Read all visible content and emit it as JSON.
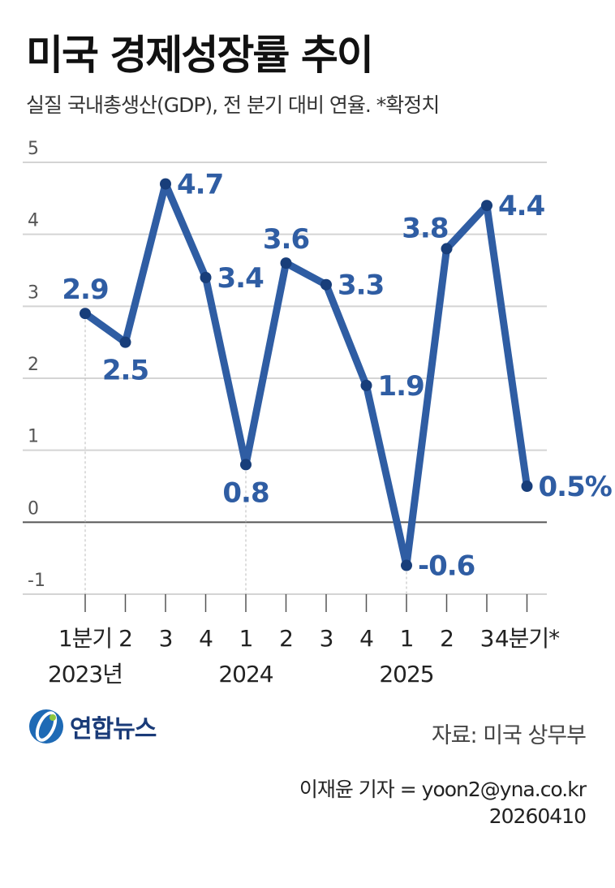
{
  "header": {
    "title": "미국 경제성장률 추이",
    "subtitle": "실질 국내총생산(GDP), 전 분기 대비 연율. *확정치"
  },
  "chart_data": {
    "type": "line",
    "x": [
      "1분기",
      "2",
      "3",
      "4",
      "1",
      "2",
      "3",
      "4",
      "1",
      "2",
      "3",
      "4분기*"
    ],
    "year_labels": [
      {
        "label": "2023년",
        "index": 0
      },
      {
        "label": "2024",
        "index": 4
      },
      {
        "label": "2025",
        "index": 8
      }
    ],
    "series": [
      {
        "values": [
          2.9,
          2.5,
          4.7,
          3.4,
          0.8,
          3.6,
          3.3,
          1.9,
          -0.6,
          3.8,
          4.4,
          0.5
        ]
      }
    ],
    "data_labels": [
      "2.9",
      "2.5",
      "4.7",
      "3.4",
      "0.8",
      "3.6",
      "3.3",
      "1.9",
      "-0.6",
      "3.8",
      "4.4",
      "0.5%"
    ],
    "y_ticks": [
      "5",
      "4",
      "3",
      "2",
      "1",
      "0",
      "-1"
    ],
    "ylim": [
      -1,
      5
    ],
    "grid": true,
    "line_color": "#2f5da3",
    "label_color": "#2f5da3"
  },
  "footer": {
    "logo_text": "연합뉴스",
    "source": "자료: 미국 상무부",
    "reporter": "이재윤 기자 = yoon2@yna.co.kr",
    "date": "20260410"
  }
}
